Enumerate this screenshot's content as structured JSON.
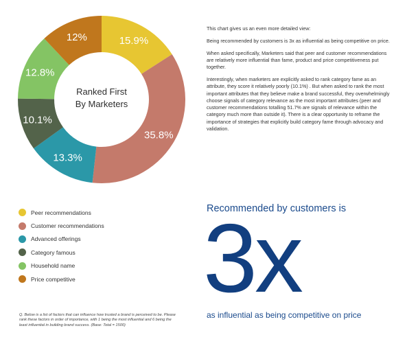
{
  "chart_data": {
    "type": "pie",
    "center_label": [
      "Ranked First",
      "By Marketers"
    ],
    "slices": [
      {
        "name": "Peer recommendations",
        "value": 15.9,
        "label": "15.9%",
        "color": "#e7c632"
      },
      {
        "name": "Customer recommendations",
        "value": 35.8,
        "label": "35.8%",
        "color": "#c47a6b"
      },
      {
        "name": "Advanced offerings",
        "value": 13.3,
        "label": "13.3%",
        "color": "#2b98a8"
      },
      {
        "name": "Category famous",
        "value": 10.1,
        "label": "10.1%",
        "color": "#53634a"
      },
      {
        "name": "Household name",
        "value": 12.8,
        "label": "12.8%",
        "color": "#84c464"
      },
      {
        "name": "Price competitive",
        "value": 12,
        "label": "12%",
        "color": "#c0771d"
      }
    ]
  },
  "legend": [
    {
      "label": "Peer recommendations",
      "color": "#e7c632"
    },
    {
      "label": "Customer recommendations",
      "color": "#c47a6b"
    },
    {
      "label": "Advanced offerings",
      "color": "#2b98a8"
    },
    {
      "label": "Category famous",
      "color": "#53634a"
    },
    {
      "label": "Household name",
      "color": "#84c464"
    },
    {
      "label": "Price competitive",
      "color": "#c0771d"
    }
  ],
  "text": {
    "p1": "This chart gives us an even more detailed view:",
    "p2": "Being recommended by customers is 3x as influential as being competitive on price.",
    "p3": "When asked specifically, Marketers said that peer and customer recommendations are relatively more influential than fame, product and price competitiveness put together.",
    "p4": "Interestingly, when marketers are explicitly asked to rank category fame as an attribute, they score it relatively poorly (10.1%) . But when asked to rank the most important attributes that they believe make a brand successful, they overwhelmingly choose signals of category relevance as the most important attributes (peer and customer recommendations totalling 51.7% are signals of relevance within the category much more than outside it). There is a clear opportunity to reframe the importance of strategies that explicitly build category fame through advocacy and validation."
  },
  "stat": {
    "headline_top": "Recommended by customers is",
    "big_value": "3x",
    "headline_bottom": "as influential as being competitive on price",
    "color": "#123f80"
  },
  "footnote": "Q. Below is a list of factors that can influence how trusted a brand is perceived to be. Please rank these factors in order of importance, with 1 being the most influential and 6 being the least influential in building brand success. (Base: Total = 1500)"
}
